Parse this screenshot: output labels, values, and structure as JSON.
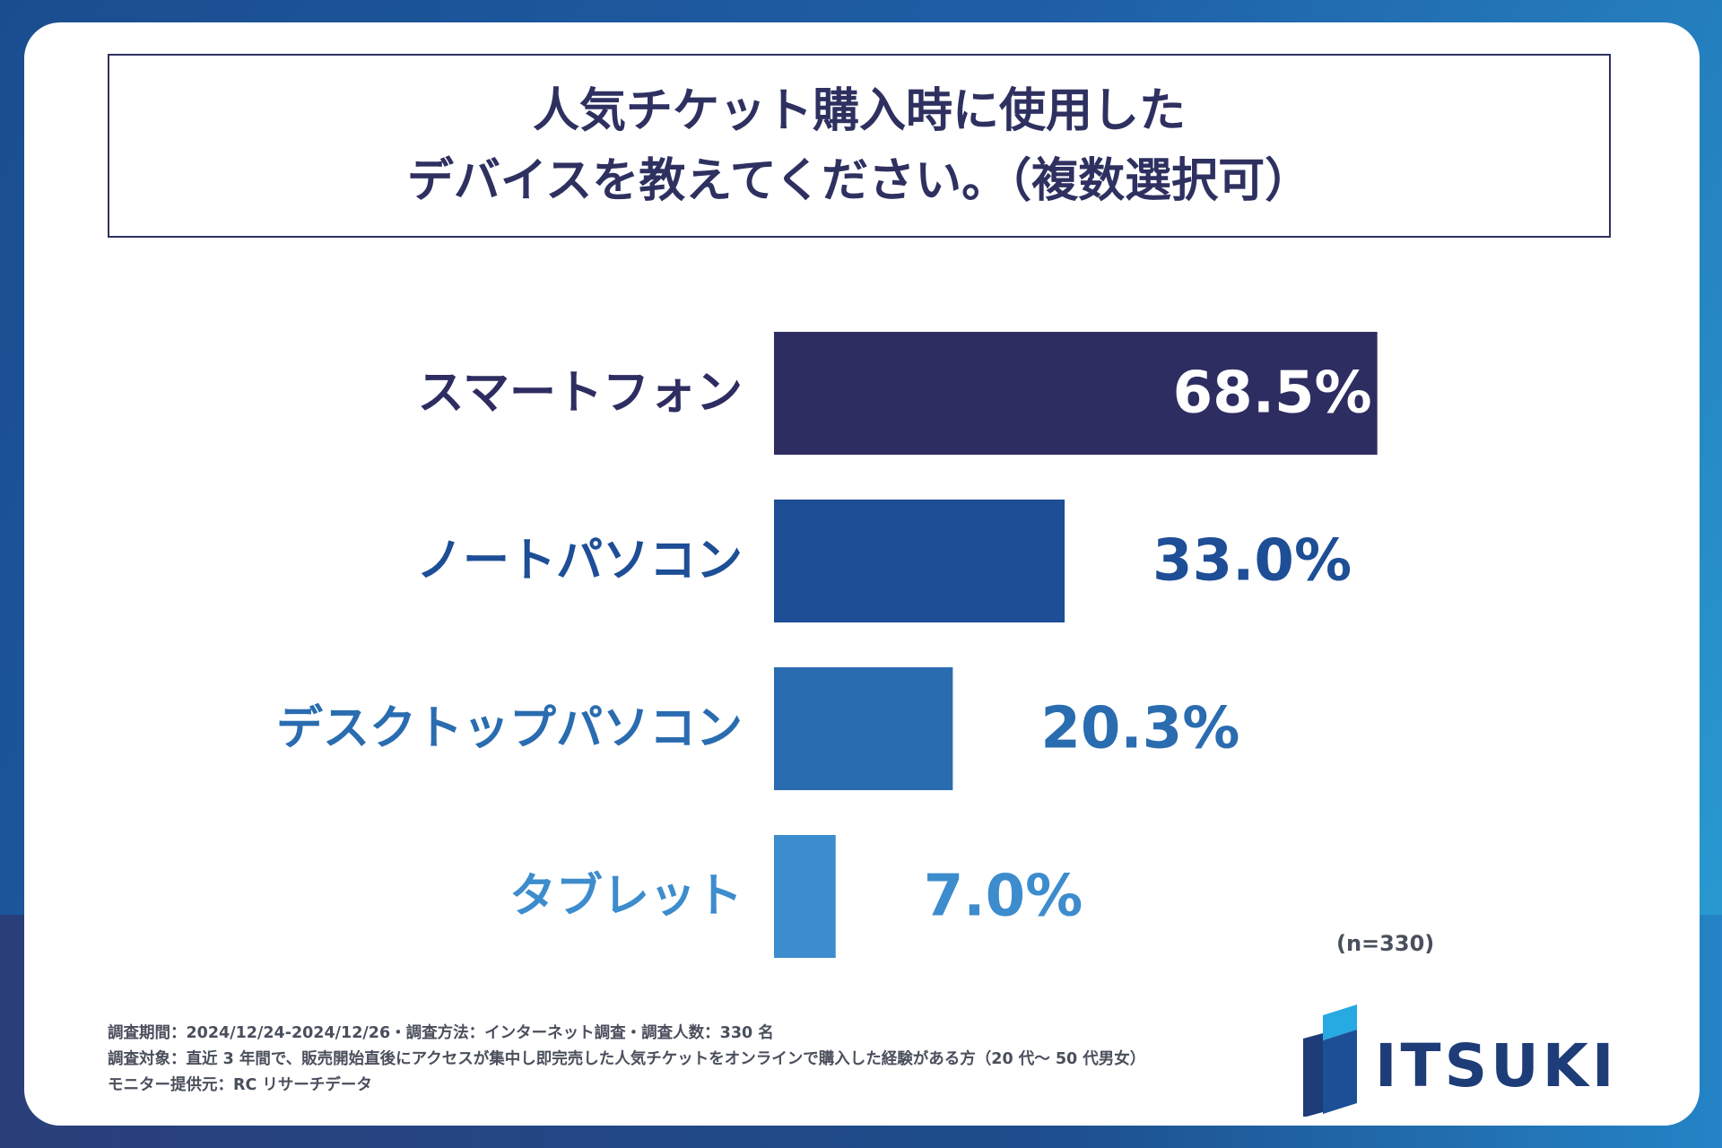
{
  "title": {
    "line1": "人気チケット購入時に使用した",
    "line2": "デバイスを教えてください。（複数選択可）"
  },
  "chart_data": {
    "type": "bar",
    "orientation": "horizontal",
    "title": "人気チケット購入時に使用したデバイスを教えてください。（複数選択可）",
    "categories": [
      "スマートフォン",
      "ノートパソコン",
      "デスクトップパソコン",
      "タブレット"
    ],
    "values": [
      68.5,
      33.0,
      20.3,
      7.0
    ],
    "value_labels": [
      "68.5%",
      "33.0%",
      "20.3%",
      "7.0%"
    ],
    "unit": "%",
    "xlim": [
      0,
      100
    ],
    "colors": [
      "#2e2d62",
      "#1d4e96",
      "#2a6cb0",
      "#3d8ccd"
    ],
    "grid": false,
    "legend": "none"
  },
  "sample": "(n=330)",
  "footnotes": [
    "調査期間：2024/12/24-2024/12/26・調査方法：インターネット調査・調査人数：330 名",
    "調査対象：直近 3 年間で、販売開始直後にアクセスが集中し即完売した人気チケットをオンラインで購入した経験がある方（20 代〜 50 代男女）",
    "モニター提供元：RC リサーチデータ"
  ],
  "logo": {
    "text": "ITSUKI",
    "color": "#1e3c78"
  }
}
